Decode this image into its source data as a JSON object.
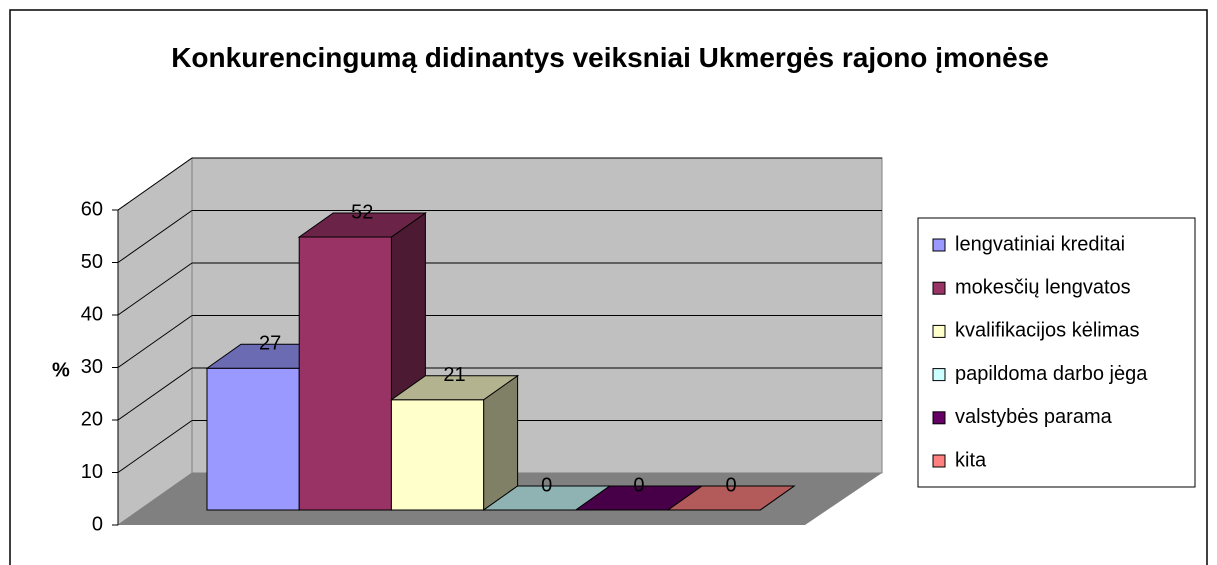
{
  "chart_data": {
    "type": "bar3d",
    "title": "Konkurencingumą didinantys veiksniai Ukmergės rajono įmonėse",
    "y_label": "%",
    "categories": [
      "lengvatiniai kreditai",
      "mokesčių lengvatos",
      "kvalifikacijos kėlimas",
      "papildoma darbo jėga",
      "valstybės parama",
      "kita"
    ],
    "values": [
      27,
      52,
      21,
      0,
      0,
      0
    ],
    "colors": [
      "#9999ff",
      "#993366",
      "#ffffcc",
      "#ccffff",
      "#660066",
      "#ff8080"
    ],
    "ylim": [
      0,
      60
    ],
    "yticks": [
      0,
      10,
      20,
      30,
      40,
      50,
      60
    ],
    "grid": true,
    "legend": "right"
  }
}
